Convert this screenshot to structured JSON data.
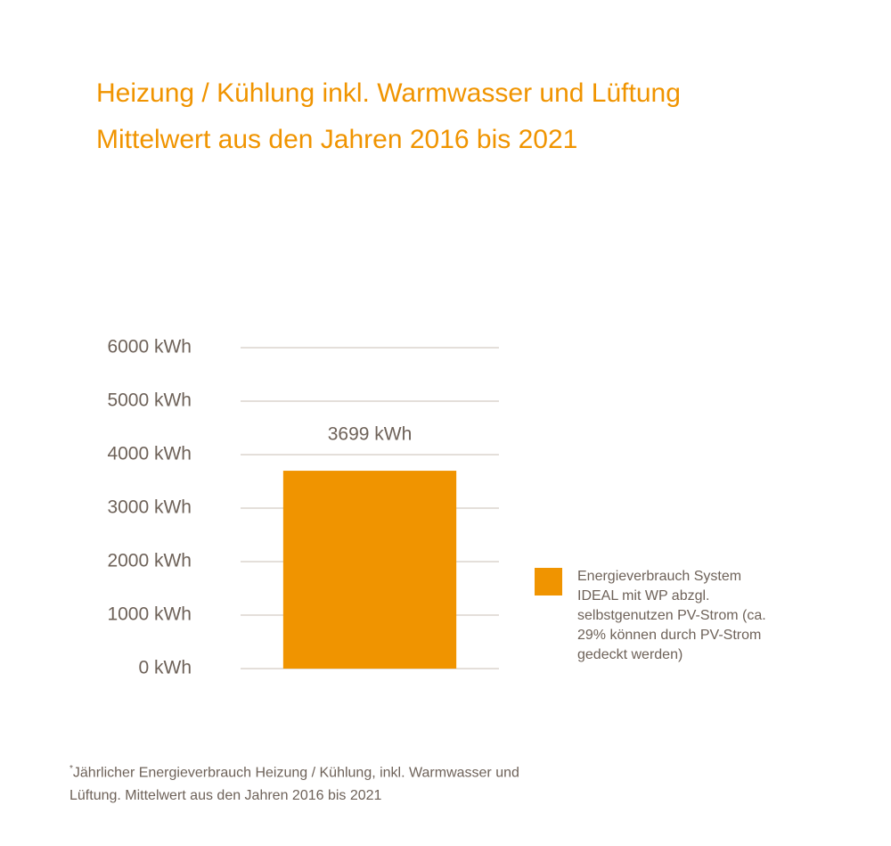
{
  "chart_data": {
    "type": "bar",
    "title": "Heizung / Kühlung inkl. Warmwasser und Lüftung",
    "subtitle": "Mittelwert aus den Jahren 2016 bis 2021",
    "categories": [
      null
    ],
    "series": [
      {
        "name": "Energieverbrauch System IDEAL mit WP abzgl. selbstgenutzen PV-Strom (ca. 29% können durch PV-Strom gedeckt werden)",
        "color": "#f09400",
        "values": [
          3699
        ],
        "value_labels": [
          "3699 kWh"
        ]
      }
    ],
    "ylim": [
      0,
      6000
    ],
    "yticks": [
      {
        "value": 0,
        "label": "0 kWh"
      },
      {
        "value": 1000,
        "label": "1000 kWh"
      },
      {
        "value": 2000,
        "label": "2000 kWh"
      },
      {
        "value": 3000,
        "label": "3000 kWh"
      },
      {
        "value": 4000,
        "label": "4000 kWh"
      },
      {
        "value": 5000,
        "label": "5000 kWh"
      },
      {
        "value": 6000,
        "label": "6000 kWh"
      }
    ],
    "grid": true,
    "legend": "right",
    "footnote_marker": "*",
    "footnote": "Jährlicher Energieverbrauch Heizung / Kühlung, inkl. Warmwasser und Lüftung. Mittelwert aus den Jahren 2016 bis 2021"
  }
}
